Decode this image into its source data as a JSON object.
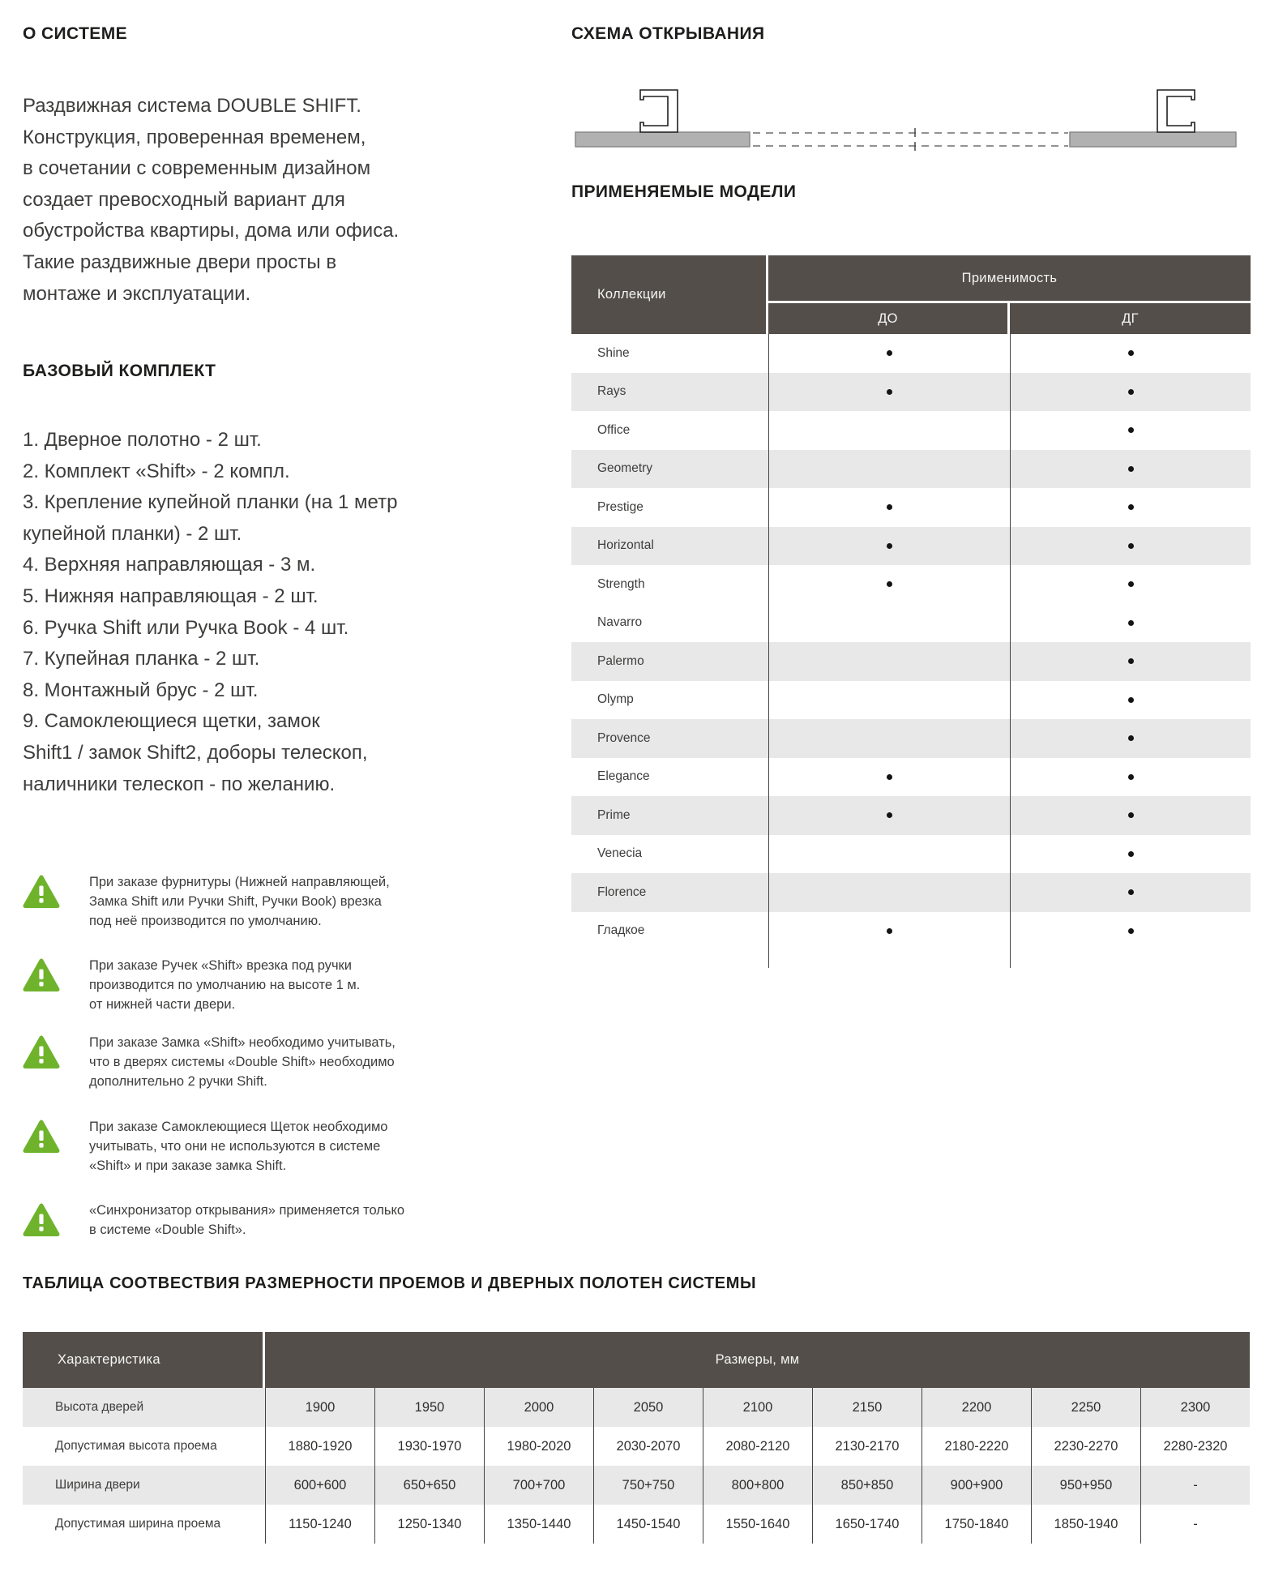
{
  "colors": {
    "header_bg": "#534e4a",
    "stripe": "#e8e8e8",
    "warning_green": "#6eb32b",
    "text": "#3d3d3c",
    "bar_fill": "#b1b1b1"
  },
  "about": {
    "title": "О СИСТЕМЕ",
    "body": "Раздвижная система DOUBLE SHIFT.\nКонструкция, проверенная временем,\nв сочетании с современным дизайном\nсоздает превосходный вариант для\nобустройства квартиры, дома или офиса.\nТакие раздвижные двери просты в\nмонтаже и эксплуатации."
  },
  "kit": {
    "title": "БАЗОВЫЙ КОМПЛЕКТ",
    "items": [
      "1. Дверное полотно - 2 шт.",
      "2. Комплект «Shift» - 2 компл.",
      "3. Крепление купейной планки (на 1 метр\nкупейной планки) - 2 шт.",
      "4. Верхняя направляющая -  3 м.",
      "5. Нижняя направляющая -  2 шт.",
      "6. Ручка Shift или Ручка Book -  4 шт.",
      "7. Купейная планка  - 2 шт.",
      "8. Монтажный брус - 2 шт.",
      "9. Самоклеющиеся щетки, замок\nShift1 / замок Shift2, доборы телескоп,\nналичники телескоп  - по желанию."
    ]
  },
  "warnings": [
    "При заказе фурнитуры (Нижней направляющей,\nЗамка Shift или Ручки Shift, Ручки Book) врезка\nпод неё производится  по умолчанию.",
    "При заказе Ручек «Shift» врезка под ручки\nпроизводится по умолчанию на высоте 1 м.\nот нижней части двери.",
    "При заказе Замка «Shift» необходимо учитывать,\nчто в дверях системы «Double Shift» необходимо\nдополнительно 2 ручки Shift.",
    "При заказе Самоклеющиеся Щеток необходимо\nучитывать, что они не используются в системе\n«Shift» и при заказе замка Shift.",
    "«Синхронизатор открывания» применяется только\nв системе «Double Shift»."
  ],
  "scheme": {
    "title": "СХЕМА ОТКРЫВАНИЯ"
  },
  "models": {
    "title": "ПРИМЕНЯЕМЫЕ МОДЕЛИ",
    "header": {
      "collections": "Коллекции",
      "applicability": "Применимость",
      "do": "ДО",
      "dg": "ДГ"
    },
    "rows": [
      {
        "name": "Shine",
        "do": true,
        "dg": true,
        "shaded": false
      },
      {
        "name": "Rays",
        "do": true,
        "dg": true,
        "shaded": true
      },
      {
        "name": "Office",
        "do": false,
        "dg": true,
        "shaded": false
      },
      {
        "name": "Geometry",
        "do": false,
        "dg": true,
        "shaded": true
      },
      {
        "name": "Prestige",
        "do": true,
        "dg": true,
        "shaded": false
      },
      {
        "name": "Horizontal",
        "do": true,
        "dg": true,
        "shaded": true
      },
      {
        "name": "Strength",
        "do": true,
        "dg": true,
        "shaded": false
      },
      {
        "name": "Navarro",
        "do": false,
        "dg": true,
        "shaded": false
      },
      {
        "name": "Palermo",
        "do": false,
        "dg": true,
        "shaded": true
      },
      {
        "name": "Olymp",
        "do": false,
        "dg": true,
        "shaded": false
      },
      {
        "name": "Provence",
        "do": false,
        "dg": true,
        "shaded": true
      },
      {
        "name": "Elegance",
        "do": true,
        "dg": true,
        "shaded": false
      },
      {
        "name": "Prime",
        "do": true,
        "dg": true,
        "shaded": true
      },
      {
        "name": "Venecia",
        "do": false,
        "dg": true,
        "shaded": false
      },
      {
        "name": "Florence",
        "do": false,
        "dg": true,
        "shaded": true
      },
      {
        "name": "Гладкое",
        "do": true,
        "dg": true,
        "shaded": false
      }
    ]
  },
  "size_table": {
    "title": "ТАБЛИЦА СООТВЕСТВИЯ РАЗМЕРНОСТИ ПРОЕМОВ И ДВЕРНЫХ ПОЛОТЕН СИСТЕМЫ",
    "header": {
      "characteristic": "Характеристика",
      "sizes": "Размеры, мм"
    },
    "rows": [
      {
        "label": "Высота дверей",
        "shaded": true,
        "values": [
          "1900",
          "1950",
          "2000",
          "2050",
          "2100",
          "2150",
          "2200",
          "2250",
          "2300"
        ]
      },
      {
        "label": "Допустимая высота проема",
        "shaded": false,
        "values": [
          "1880-1920",
          "1930-1970",
          "1980-2020",
          "2030-2070",
          "2080-2120",
          "2130-2170",
          "2180-2220",
          "2230-2270",
          "2280-2320"
        ]
      },
      {
        "label": "Ширина двери",
        "shaded": true,
        "values": [
          "600+600",
          "650+650",
          "700+700",
          "750+750",
          "800+800",
          "850+850",
          "900+900",
          "950+950",
          "-"
        ]
      },
      {
        "label": "Допустимая ширина проема",
        "shaded": false,
        "values": [
          "1150-1240",
          "1250-1340",
          "1350-1440",
          "1450-1540",
          "1550-1640",
          "1650-1740",
          "1750-1840",
          "1850-1940",
          "-"
        ]
      }
    ]
  }
}
